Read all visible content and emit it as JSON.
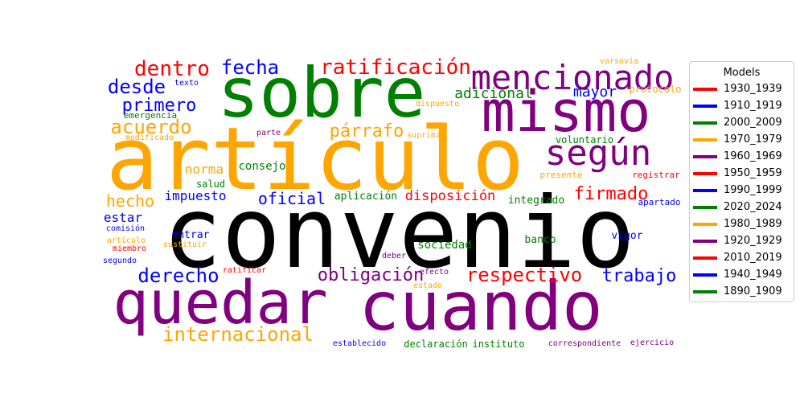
{
  "chart_data": {
    "type": "wordcloud",
    "legend": {
      "title": "Models",
      "placement": "right",
      "items": [
        {
          "label": "1930_1939",
          "color": "#ff0000"
        },
        {
          "label": "1910_1919",
          "color": "#0000ff"
        },
        {
          "label": "2000_2009",
          "color": "#008000"
        },
        {
          "label": "1970_1979",
          "color": "#ffa500"
        },
        {
          "label": "1960_1969",
          "color": "#800080"
        },
        {
          "label": "1950_1959",
          "color": "#ff0000"
        },
        {
          "label": "1990_1999",
          "color": "#0000ff"
        },
        {
          "label": "2020_2024",
          "color": "#008000"
        },
        {
          "label": "1980_1989",
          "color": "#ffa500"
        },
        {
          "label": "1920_1929",
          "color": "#800080"
        },
        {
          "label": "2010_2019",
          "color": "#ff0000"
        },
        {
          "label": "1940_1949",
          "color": "#0000ff"
        },
        {
          "label": "1890_1909",
          "color": "#008000"
        }
      ]
    },
    "words": [
      {
        "text": "convenio",
        "color": "#000000"
      },
      {
        "text": "artículo",
        "color": "#ffa500"
      },
      {
        "text": "sobre",
        "color": "#008000"
      },
      {
        "text": "cuando",
        "color": "#800080"
      },
      {
        "text": "quedar",
        "color": "#800080"
      },
      {
        "text": "mismo",
        "color": "#800080"
      },
      {
        "text": "mencionado",
        "color": "#800080"
      },
      {
        "text": "según",
        "color": "#800080"
      },
      {
        "text": "ratificación",
        "color": "#ff0000"
      },
      {
        "text": "dentro",
        "color": "#ff0000"
      },
      {
        "text": "fecha",
        "color": "#0000ff"
      },
      {
        "text": "desde",
        "color": "#0000ff"
      },
      {
        "text": "primero",
        "color": "#0000ff"
      },
      {
        "text": "acuerdo",
        "color": "#ffa500"
      },
      {
        "text": "párrafo",
        "color": "#ffa500"
      },
      {
        "text": "adicional",
        "color": "#008000"
      },
      {
        "text": "mayor",
        "color": "#0000ff"
      },
      {
        "text": "protocolo",
        "color": "#ffa500"
      },
      {
        "text": "varsovia",
        "color": "#ffa500"
      },
      {
        "text": "texto",
        "color": "#0000ff"
      },
      {
        "text": "emergencia",
        "color": "#008000"
      },
      {
        "text": "modificado",
        "color": "#ffa500"
      },
      {
        "text": "parte",
        "color": "#800080"
      },
      {
        "text": "suprimir",
        "color": "#ffa500"
      },
      {
        "text": "dispuesto",
        "color": "#ffa500"
      },
      {
        "text": "voluntario",
        "color": "#008000"
      },
      {
        "text": "norma",
        "color": "#ffa500"
      },
      {
        "text": "consejo",
        "color": "#008000"
      },
      {
        "text": "salud",
        "color": "#008000"
      },
      {
        "text": "presente",
        "color": "#ffa500"
      },
      {
        "text": "registrar",
        "color": "#ff0000"
      },
      {
        "text": "firmado",
        "color": "#ff0000"
      },
      {
        "text": "hecho",
        "color": "#ffa500"
      },
      {
        "text": "impuesto",
        "color": "#0000ff"
      },
      {
        "text": "oficial",
        "color": "#0000ff"
      },
      {
        "text": "aplicación",
        "color": "#008000"
      },
      {
        "text": "disposición",
        "color": "#ff0000"
      },
      {
        "text": "integrado",
        "color": "#008000"
      },
      {
        "text": "apartado",
        "color": "#0000ff"
      },
      {
        "text": "estar",
        "color": "#0000ff"
      },
      {
        "text": "comisión",
        "color": "#0000ff"
      },
      {
        "text": "entrar",
        "color": "#0000ff"
      },
      {
        "text": "sustituir",
        "color": "#ffa500"
      },
      {
        "text": "artículo",
        "color": "#ffa500"
      },
      {
        "text": "miembro",
        "color": "#ff0000"
      },
      {
        "text": "segundo",
        "color": "#0000ff"
      },
      {
        "text": "vigor",
        "color": "#0000ff"
      },
      {
        "text": "banco",
        "color": "#008000"
      },
      {
        "text": "sociedad",
        "color": "#008000"
      },
      {
        "text": "deber",
        "color": "#800080"
      },
      {
        "text": "efecto",
        "color": "#800080"
      },
      {
        "text": "estado",
        "color": "#ffa500"
      },
      {
        "text": "ratificar",
        "color": "#ff0000"
      },
      {
        "text": "derecho",
        "color": "#0000ff"
      },
      {
        "text": "obligación",
        "color": "#800080"
      },
      {
        "text": "respectivo",
        "color": "#ff0000"
      },
      {
        "text": "trabajo",
        "color": "#0000ff"
      },
      {
        "text": "internacional",
        "color": "#ffa500"
      },
      {
        "text": "establecido",
        "color": "#0000ff"
      },
      {
        "text": "declaración",
        "color": "#008000"
      },
      {
        "text": "instituto",
        "color": "#008000"
      },
      {
        "text": "correspondiente",
        "color": "#800080"
      },
      {
        "text": "ejercicio",
        "color": "#800080"
      }
    ]
  }
}
